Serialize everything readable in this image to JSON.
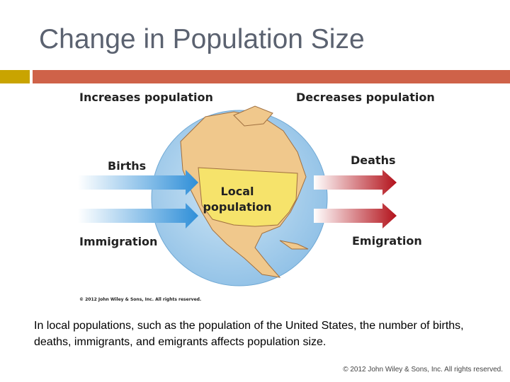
{
  "title": "Change in Population Size",
  "figure": {
    "increases_label": "Increases population",
    "decreases_label": "Decreases population",
    "births": "Births",
    "immigration": "Immigration",
    "deaths": "Deaths",
    "emigration": "Emigration",
    "center_lines": [
      "Local",
      "population"
    ],
    "credit": "© 2012 John Wiley & Sons, Inc. All rights reserved."
  },
  "caption": "In local populations, such as the population of the United States, the number of births, deaths, immigrants, and emigrants affects population size.",
  "footer": "© 2012 John Wiley & Sons, Inc. All rights reserved."
}
